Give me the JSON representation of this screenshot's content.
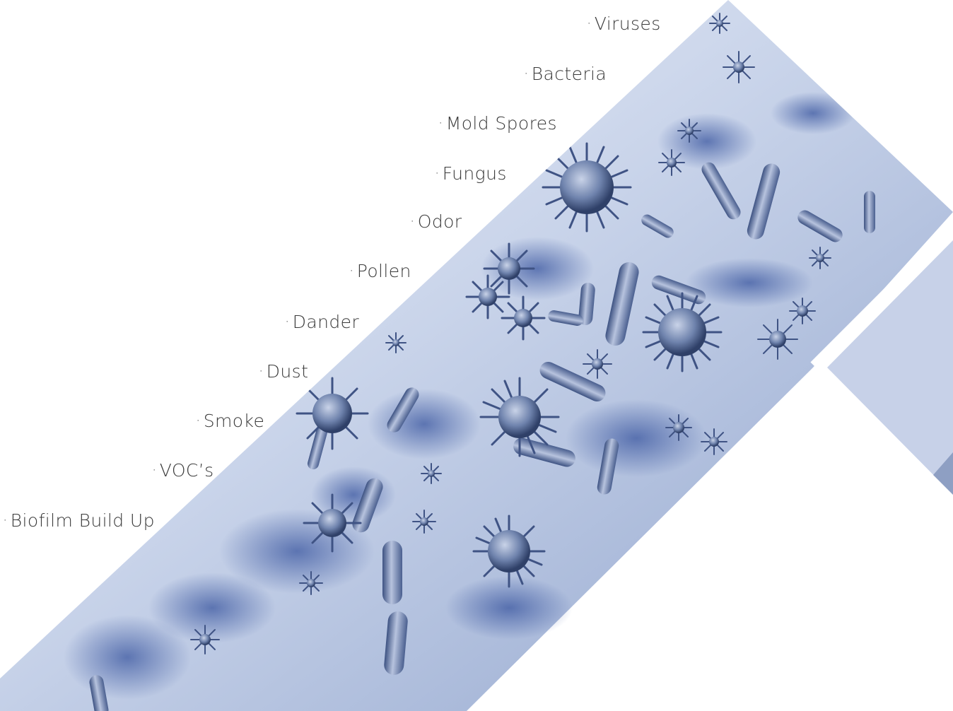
{
  "contaminants": [
    {
      "bullet": "·",
      "label": "Viruses"
    },
    {
      "bullet": "·",
      "label": "Bacteria"
    },
    {
      "bullet": "·",
      "label": "Mold Spores"
    },
    {
      "bullet": "·",
      "label": "Fungus"
    },
    {
      "bullet": "·",
      "label": "Odor"
    },
    {
      "bullet": "·",
      "label": "Pollen"
    },
    {
      "bullet": "·",
      "label": "Dander"
    },
    {
      "bullet": "·",
      "label": "Dust"
    },
    {
      "bullet": "·",
      "label": "Smoke"
    },
    {
      "bullet": "·",
      "label": "VOC’s"
    },
    {
      "bullet": "·",
      "label": "Biofilm Build Up"
    }
  ],
  "colors": {
    "text": "#3a3a3a",
    "band_light": "#eef2f8",
    "band_mid": "#9fb3d6",
    "microbe": "#5a6f9c",
    "microbe_dark": "#32456e"
  }
}
